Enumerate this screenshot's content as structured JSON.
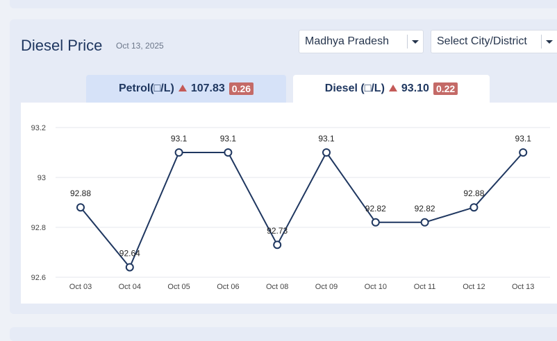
{
  "title": "Diesel Price",
  "date": "Oct 13, 2025",
  "state_select": {
    "value": "Madhya Pradesh"
  },
  "city_select": {
    "value": "Select City/District"
  },
  "tabs": [
    {
      "label": "Petrol(□/L)",
      "price": "107.83",
      "change": "0.26"
    },
    {
      "label": "Diesel (□/L)",
      "price": "93.10",
      "change": "0.22"
    }
  ],
  "colors": {
    "line": "#1f3760",
    "grid": "#e4e7ec",
    "tick": "#444444",
    "badge": "#c46a67",
    "up_arrow": "#c45a58"
  },
  "chart_data": {
    "type": "line",
    "title": "",
    "xlabel": "",
    "ylabel": "",
    "categories": [
      "Oct 03",
      "Oct 04",
      "Oct 05",
      "Oct 06",
      "Oct 08",
      "Oct 09",
      "Oct 10",
      "Oct 11",
      "Oct 12",
      "Oct 13"
    ],
    "series": [
      {
        "values": [
          92.88,
          92.64,
          93.1,
          93.1,
          92.73,
          93.1,
          92.82,
          92.82,
          92.88,
          93.1
        ]
      }
    ],
    "data_labels": [
      "92.88",
      "92.64",
      "93.1",
      "93.1",
      "92.73",
      "93.1",
      "92.82",
      "92.82",
      "92.88",
      "93.1"
    ],
    "yticks": [
      "92.6",
      "92.8",
      "93",
      "93.2"
    ],
    "ylim": [
      92.6,
      93.2
    ],
    "grid": true
  }
}
